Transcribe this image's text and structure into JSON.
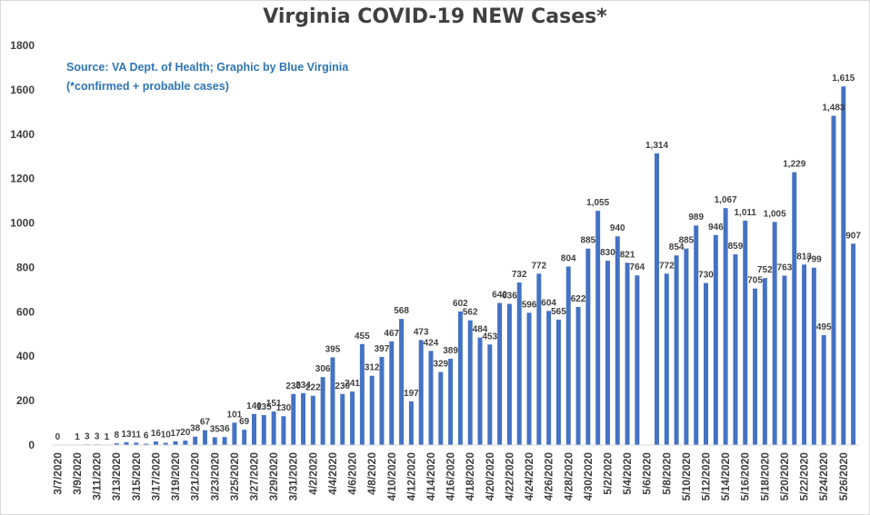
{
  "colors": {
    "bar": "#4472c4",
    "text": "#404040",
    "source": "#2e75b6",
    "grid": "#d9d9d9"
  },
  "chart_data": {
    "type": "bar",
    "title": "Virginia COVID-19 NEW Cases*",
    "source": "Source: VA Dept. of Health; Graphic by Blue Virginia",
    "footnote": "(*confirmed + probable cases)",
    "ylim": [
      0,
      1800
    ],
    "yticks": [
      0,
      200,
      400,
      600,
      800,
      1000,
      1200,
      1400,
      1600,
      1800
    ],
    "grid": false,
    "categories": [
      "3/7/2020",
      "3/8/2020",
      "3/9/2020",
      "3/10/2020",
      "3/11/2020",
      "3/12/2020",
      "3/13/2020",
      "3/14/2020",
      "3/15/2020",
      "3/16/2020",
      "3/17/2020",
      "3/18/2020",
      "3/19/2020",
      "3/20/2020",
      "3/21/2020",
      "3/22/2020",
      "3/23/2020",
      "3/24/2020",
      "3/25/2020",
      "3/26/2020",
      "3/27/2020",
      "3/28/2020",
      "3/29/2020",
      "3/30/2020",
      "3/31/2020",
      "4/1/2020",
      "4/2/2020",
      "4/3/2020",
      "4/4/2020",
      "4/5/2020",
      "4/6/2020",
      "4/7/2020",
      "4/8/2020",
      "4/9/2020",
      "4/10/2020",
      "4/11/2020",
      "4/12/2020",
      "4/13/2020",
      "4/14/2020",
      "4/15/2020",
      "4/16/2020",
      "4/17/2020",
      "4/18/2020",
      "4/19/2020",
      "4/20/2020",
      "4/21/2020",
      "4/22/2020",
      "4/23/2020",
      "4/24/2020",
      "4/25/2020",
      "4/26/2020",
      "4/27/2020",
      "4/28/2020",
      "4/29/2020",
      "4/30/2020",
      "5/1/2020",
      "5/2/2020",
      "5/3/2020",
      "5/4/2020",
      "5/5/2020",
      "5/6/2020",
      "5/7/2020",
      "5/8/2020",
      "5/9/2020",
      "5/10/2020",
      "5/11/2020",
      "5/12/2020",
      "5/13/2020",
      "5/14/2020",
      "5/15/2020",
      "5/16/2020",
      "5/17/2020",
      "5/18/2020",
      "5/19/2020",
      "5/20/2020",
      "5/21/2020",
      "5/22/2020",
      "5/23/2020",
      "5/24/2020",
      "5/25/2020",
      "5/26/2020",
      "5/27/2020"
    ],
    "values": [
      0,
      null,
      1,
      3,
      3,
      1,
      8,
      13,
      11,
      6,
      16,
      10,
      17,
      20,
      38,
      67,
      35,
      36,
      101,
      69,
      140,
      135,
      151,
      130,
      230,
      234,
      222,
      306,
      395,
      230,
      241,
      455,
      312,
      397,
      467,
      568,
      197,
      473,
      424,
      329,
      389,
      602,
      562,
      484,
      453,
      640,
      636,
      732,
      596,
      772,
      604,
      565,
      804,
      622,
      885,
      1055,
      830,
      940,
      821,
      764,
      null,
      1314,
      772,
      854,
      885,
      989,
      730,
      946,
      1067,
      859,
      1011,
      705,
      752,
      1005,
      763,
      1229,
      813,
      799,
      495,
      1483,
      1615,
      907
    ],
    "data_labels": [
      "0",
      "",
      "1",
      "3",
      "3",
      "1",
      "8",
      "13",
      "11",
      "6",
      "16",
      "10",
      "17",
      "20",
      "38",
      "67",
      "35",
      "36",
      "101",
      "69",
      "140",
      "135",
      "151",
      "130",
      "230",
      "234",
      "222",
      "306",
      "395",
      "230",
      "241",
      "455",
      "312",
      "397",
      "467",
      "568",
      "197",
      "473",
      "424",
      "329",
      "389",
      "602",
      "562",
      "484",
      "453",
      "640",
      "636",
      "732",
      "596",
      "772",
      "604",
      "565",
      "804",
      "622",
      "885",
      "1,055",
      "830",
      "940",
      "821",
      "764",
      "",
      "1,314",
      "772",
      "854",
      "885",
      "989",
      "730",
      "946",
      "1,067",
      "859",
      "1,011",
      "705",
      "752",
      "1,005",
      "763",
      "1,229",
      "813",
      "799",
      "495",
      "1,483",
      "1,615",
      "907"
    ],
    "xtick_labels": [
      "3/7/2020",
      "3/9/2020",
      "3/11/2020",
      "3/13/2020",
      "3/15/2020",
      "3/17/2020",
      "3/19/2020",
      "3/21/2020",
      "3/23/2020",
      "3/25/2020",
      "3/27/2020",
      "3/29/2020",
      "3/31/2020",
      "4/2/2020",
      "4/4/2020",
      "4/6/2020",
      "4/8/2020",
      "4/10/2020",
      "4/12/2020",
      "4/14/2020",
      "4/16/2020",
      "4/18/2020",
      "4/20/2020",
      "4/22/2020",
      "4/24/2020",
      "4/26/2020",
      "4/28/2020",
      "4/30/2020",
      "5/2/2020",
      "5/4/2020",
      "5/6/2020",
      "5/8/2020",
      "5/10/2020",
      "5/12/2020",
      "5/14/2020",
      "5/16/2020",
      "5/18/2020",
      "5/20/2020",
      "5/22/2020",
      "5/24/2020",
      "5/26/2020"
    ]
  }
}
